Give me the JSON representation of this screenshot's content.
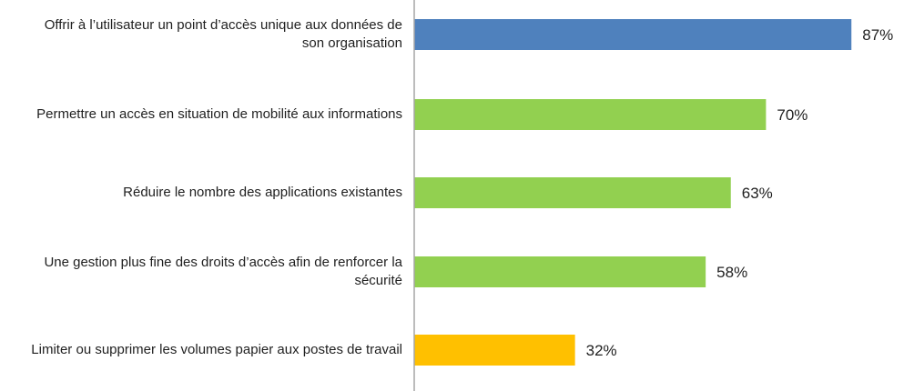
{
  "chart_data": {
    "type": "bar",
    "orientation": "horizontal",
    "categories": [
      "Offrir à l’utilisateur un point d’accès unique aux données de son organisation",
      "Permettre un accès en situation de mobilité aux informations",
      "Réduire le nombre des applications existantes",
      "Une gestion plus fine des droits d’accès afin de renforcer la sécurité",
      "Limiter ou supprimer les volumes papier aux postes de travail"
    ],
    "values": [
      87,
      70,
      63,
      58,
      32
    ],
    "value_labels": [
      "87%",
      "70%",
      "63%",
      "58%",
      "32%"
    ],
    "colors": [
      "#4F81BD",
      "#92D050",
      "#92D050",
      "#92D050",
      "#FFC000"
    ],
    "xlim": [
      0,
      100
    ],
    "title": "",
    "xlabel": "",
    "ylabel": "",
    "grid": false,
    "legend": "none",
    "axis_color": "#A6A6A6"
  }
}
